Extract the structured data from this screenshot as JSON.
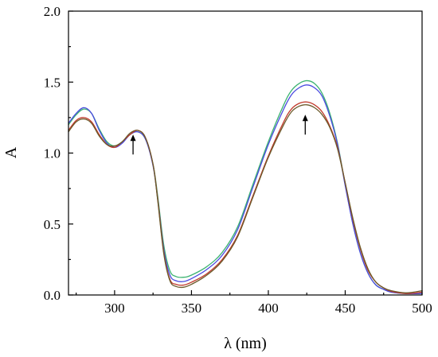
{
  "chart_data": {
    "type": "line",
    "title": "",
    "xlabel": "λ (nm)",
    "ylabel": "A",
    "xlim": [
      270,
      500
    ],
    "ylim": [
      0.0,
      2.0
    ],
    "xticks": [
      300,
      350,
      400,
      450,
      500
    ],
    "yticks": [
      0.0,
      0.5,
      1.0,
      1.5,
      2.0
    ],
    "xtick_labels": [
      "300",
      "350",
      "400",
      "450",
      "500"
    ],
    "ytick_labels": [
      "0.0",
      "0.5",
      "1.0",
      "1.5",
      "2.0"
    ],
    "grid": false,
    "legend": "none",
    "series": [
      {
        "color": "#3cb371",
        "x": [
          270,
          275,
          280,
          285,
          290,
          295,
          300,
          305,
          310,
          315,
          320,
          325,
          328,
          332,
          336,
          340,
          345,
          350,
          360,
          370,
          380,
          390,
          400,
          410,
          415,
          420,
          425,
          430,
          435,
          440,
          445,
          450,
          455,
          460,
          465,
          470,
          475,
          480,
          490,
          500
        ],
        "y": [
          1.2,
          1.27,
          1.31,
          1.28,
          1.17,
          1.08,
          1.05,
          1.08,
          1.13,
          1.15,
          1.1,
          0.92,
          0.7,
          0.35,
          0.17,
          0.13,
          0.125,
          0.14,
          0.2,
          0.3,
          0.48,
          0.78,
          1.08,
          1.34,
          1.44,
          1.49,
          1.51,
          1.49,
          1.42,
          1.28,
          1.07,
          0.78,
          0.5,
          0.29,
          0.15,
          0.07,
          0.04,
          0.02,
          0.01,
          0.01
        ]
      },
      {
        "color": "#4a4ae0",
        "x": [
          270,
          275,
          280,
          285,
          290,
          295,
          300,
          305,
          310,
          315,
          320,
          325,
          328,
          332,
          336,
          340,
          345,
          350,
          360,
          370,
          380,
          390,
          400,
          410,
          415,
          420,
          425,
          430,
          435,
          440,
          445,
          450,
          455,
          460,
          465,
          470,
          475,
          480,
          490,
          500
        ],
        "y": [
          1.21,
          1.28,
          1.32,
          1.28,
          1.16,
          1.07,
          1.04,
          1.07,
          1.13,
          1.15,
          1.1,
          0.91,
          0.68,
          0.32,
          0.14,
          0.1,
          0.095,
          0.115,
          0.18,
          0.28,
          0.46,
          0.76,
          1.06,
          1.31,
          1.41,
          1.46,
          1.48,
          1.46,
          1.4,
          1.26,
          1.06,
          0.77,
          0.5,
          0.29,
          0.15,
          0.07,
          0.04,
          0.02,
          0.01,
          0.01
        ]
      },
      {
        "color": "#c0392b",
        "x": [
          270,
          275,
          280,
          285,
          290,
          295,
          300,
          305,
          310,
          315,
          320,
          325,
          328,
          332,
          336,
          340,
          345,
          350,
          360,
          370,
          380,
          390,
          400,
          410,
          415,
          420,
          425,
          430,
          435,
          440,
          445,
          450,
          455,
          460,
          465,
          470,
          475,
          480,
          490,
          500
        ],
        "y": [
          1.16,
          1.23,
          1.25,
          1.22,
          1.13,
          1.06,
          1.04,
          1.08,
          1.13,
          1.16,
          1.11,
          0.92,
          0.68,
          0.3,
          0.11,
          0.075,
          0.07,
          0.09,
          0.15,
          0.25,
          0.42,
          0.7,
          0.98,
          1.22,
          1.31,
          1.35,
          1.36,
          1.34,
          1.29,
          1.19,
          1.04,
          0.79,
          0.53,
          0.32,
          0.17,
          0.09,
          0.05,
          0.025,
          0.01,
          0.02
        ]
      },
      {
        "color": "#6b5a2a",
        "x": [
          270,
          275,
          280,
          285,
          290,
          295,
          300,
          305,
          310,
          315,
          320,
          325,
          328,
          332,
          336,
          340,
          345,
          350,
          360,
          370,
          380,
          390,
          400,
          410,
          415,
          420,
          425,
          430,
          435,
          440,
          445,
          450,
          455,
          460,
          465,
          470,
          475,
          480,
          490,
          500
        ],
        "y": [
          1.15,
          1.22,
          1.24,
          1.21,
          1.12,
          1.06,
          1.05,
          1.08,
          1.14,
          1.16,
          1.11,
          0.92,
          0.67,
          0.29,
          0.1,
          0.06,
          0.055,
          0.075,
          0.14,
          0.24,
          0.41,
          0.69,
          0.97,
          1.2,
          1.29,
          1.33,
          1.34,
          1.32,
          1.27,
          1.18,
          1.03,
          0.79,
          0.54,
          0.33,
          0.18,
          0.09,
          0.05,
          0.03,
          0.015,
          0.03
        ]
      }
    ],
    "annotations": [
      {
        "type": "arrow",
        "direction": "up",
        "x": 312,
        "y_from": 0.99,
        "y_to": 1.13
      },
      {
        "type": "arrow",
        "direction": "up",
        "x": 424,
        "y_from": 1.13,
        "y_to": 1.27
      }
    ]
  }
}
